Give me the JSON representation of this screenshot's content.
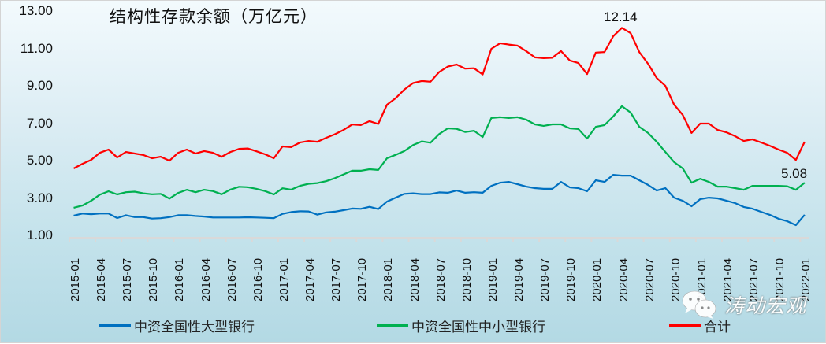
{
  "chart_data": {
    "type": "line",
    "title": "结构性存款余额（万亿元）",
    "xlabel": "",
    "ylabel": "",
    "ylim": [
      1.0,
      13.0
    ],
    "yticks": [
      "13.00",
      "11.00",
      "9.00",
      "7.00",
      "5.00",
      "3.00",
      "1.00"
    ],
    "grid": false,
    "legend_position": "bottom",
    "x_tick_labels": [
      "2015-01",
      "2015-04",
      "2015-07",
      "2015-10",
      "2016-01",
      "2016-04",
      "2016-07",
      "2016-10",
      "2017-01",
      "2017-04",
      "2017-07",
      "2017-10",
      "2018-01",
      "2018-04",
      "2018-07",
      "2018-10",
      "2019-01",
      "2019-04",
      "2019-07",
      "2019-10",
      "2020-01",
      "2020-04",
      "2020-07",
      "2020-10",
      "2021-01",
      "2021-04",
      "2021-07",
      "2021-10",
      "2022-01"
    ],
    "x_start": "2015-01",
    "x_end": "2022-01",
    "x_frequency": "monthly",
    "series": [
      {
        "name": "中资全国性大型银行",
        "color": "#0070c0",
        "values": [
          2.1,
          2.21,
          2.17,
          2.21,
          2.21,
          1.97,
          2.12,
          2.02,
          2.02,
          1.94,
          1.96,
          2.02,
          2.12,
          2.12,
          2.08,
          2.05,
          2.0,
          2.0,
          2.0,
          2.0,
          2.01,
          2.0,
          1.98,
          1.96,
          2.19,
          2.29,
          2.33,
          2.32,
          2.15,
          2.27,
          2.31,
          2.39,
          2.48,
          2.46,
          2.57,
          2.45,
          2.85,
          3.06,
          3.26,
          3.29,
          3.25,
          3.25,
          3.34,
          3.32,
          3.44,
          3.32,
          3.35,
          3.32,
          3.69,
          3.86,
          3.9,
          3.78,
          3.65,
          3.57,
          3.53,
          3.53,
          3.9,
          3.61,
          3.57,
          3.4,
          3.99,
          3.9,
          4.28,
          4.24,
          4.24,
          3.99,
          3.74,
          3.44,
          3.57,
          3.06,
          2.89,
          2.6,
          2.98,
          3.06,
          3.02,
          2.9,
          2.77,
          2.56,
          2.47,
          2.3,
          2.14,
          1.93,
          1.8,
          1.59,
          2.14
        ]
      },
      {
        "name": "中资全国性中小型银行",
        "color": "#00b050",
        "values": [
          2.52,
          2.64,
          2.89,
          3.22,
          3.4,
          3.23,
          3.35,
          3.38,
          3.29,
          3.24,
          3.26,
          3.01,
          3.31,
          3.48,
          3.35,
          3.48,
          3.41,
          3.24,
          3.49,
          3.64,
          3.62,
          3.53,
          3.41,
          3.23,
          3.56,
          3.49,
          3.69,
          3.8,
          3.84,
          3.94,
          4.1,
          4.3,
          4.5,
          4.5,
          4.58,
          4.54,
          5.17,
          5.35,
          5.55,
          5.87,
          6.07,
          6.0,
          6.46,
          6.77,
          6.74,
          6.57,
          6.64,
          6.3,
          7.32,
          7.36,
          7.32,
          7.36,
          7.23,
          6.98,
          6.9,
          6.98,
          6.98,
          6.77,
          6.73,
          6.22,
          6.85,
          6.94,
          7.4,
          7.95,
          7.61,
          6.85,
          6.52,
          6.05,
          5.5,
          4.96,
          4.62,
          3.86,
          4.07,
          3.9,
          3.65,
          3.65,
          3.57,
          3.48,
          3.69,
          3.69,
          3.69,
          3.69,
          3.67,
          3.48,
          3.86
        ]
      },
      {
        "name": "合计",
        "color": "#ff0000",
        "values": [
          4.62,
          4.87,
          5.08,
          5.46,
          5.63,
          5.21,
          5.5,
          5.42,
          5.34,
          5.17,
          5.25,
          5.04,
          5.46,
          5.63,
          5.42,
          5.55,
          5.46,
          5.25,
          5.5,
          5.67,
          5.69,
          5.54,
          5.38,
          5.17,
          5.8,
          5.76,
          6.01,
          6.09,
          6.05,
          6.26,
          6.45,
          6.68,
          6.97,
          6.94,
          7.15,
          7.0,
          8.03,
          8.38,
          8.84,
          9.19,
          9.3,
          9.26,
          9.78,
          10.07,
          10.18,
          9.96,
          9.98,
          9.65,
          11.02,
          11.32,
          11.25,
          11.19,
          10.9,
          10.56,
          10.52,
          10.54,
          10.9,
          10.4,
          10.26,
          9.67,
          10.82,
          10.85,
          11.69,
          12.14,
          11.86,
          10.85,
          10.22,
          9.46,
          9.04,
          8.03,
          7.48,
          6.52,
          7.02,
          7.02,
          6.68,
          6.56,
          6.35,
          6.09,
          6.18,
          6.01,
          5.84,
          5.63,
          5.46,
          5.08,
          6.05
        ]
      }
    ],
    "annotations": [
      {
        "text": "12.14",
        "series": "合计",
        "x": "2020-04"
      },
      {
        "text": "5.08",
        "series": "合计",
        "x": "2021-12"
      }
    ]
  },
  "legend": {
    "items": [
      {
        "label": "中资全国性大型银行",
        "color": "#0070c0"
      },
      {
        "label": "中资全国性中小型银行",
        "color": "#00b050"
      },
      {
        "label": "合计",
        "color": "#ff0000"
      }
    ]
  },
  "watermark": {
    "text": "涛动宏观",
    "icon": "wechat-icon"
  }
}
